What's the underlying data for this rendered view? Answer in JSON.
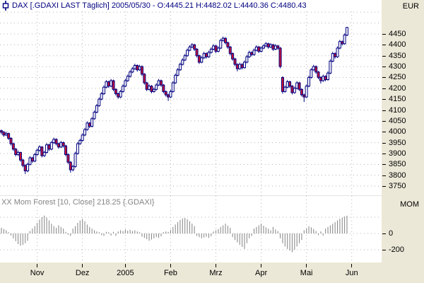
{
  "window": {
    "title": "DAX [.GDAXI LAST Täglich] 2005/05/30 - O:4445.21 H:4482.02 L:4440.36 C:4480.43",
    "currency_label": "EUR",
    "icon": "pin-icon"
  },
  "indicator": {
    "label": "XX Mom Forest [10, Close] 218.25 {.GDAXI}",
    "axis_label": "MOM"
  },
  "chart_data": {
    "type": "candlestick",
    "symbol": ".GDAXI",
    "name": "DAX",
    "interval": "Täglich",
    "last_date": "2005/05/30",
    "last_ohlc": {
      "open": 4445.21,
      "high": 4482.02,
      "low": 4440.36,
      "close": 4480.43
    },
    "price_axis": {
      "ticks": [
        4450,
        4400,
        4350,
        4300,
        4250,
        4200,
        4150,
        4100,
        4050,
        4000,
        3950,
        3900,
        3850,
        3800,
        3750
      ],
      "unlabeled_gridlines": [
        4550,
        4500
      ],
      "ylim": [
        3730,
        4560
      ]
    },
    "month_ticks": [
      {
        "label": "Nov",
        "index": 15
      },
      {
        "label": "Dez",
        "index": 34
      },
      {
        "label": "2005",
        "index": 52
      },
      {
        "label": "Feb",
        "index": 71
      },
      {
        "label": "Mrz",
        "index": 90
      },
      {
        "label": "Apr",
        "index": 109
      },
      {
        "label": "Mai",
        "index": 128
      },
      {
        "label": "Jun",
        "index": 147
      }
    ],
    "candles": [
      [
        4005,
        4010,
        3988,
        3998
      ],
      [
        3998,
        4004,
        3977,
        3985
      ],
      [
        3985,
        4000,
        3980,
        3992
      ],
      [
        3992,
        3996,
        3962,
        3970
      ],
      [
        3970,
        3975,
        3937,
        3945
      ],
      [
        3945,
        3950,
        3912,
        3920
      ],
      [
        3920,
        3926,
        3887,
        3895
      ],
      [
        3895,
        3914,
        3888,
        3905
      ],
      [
        3905,
        3908,
        3862,
        3870
      ],
      [
        3870,
        3876,
        3837,
        3845
      ],
      [
        3845,
        3850,
        3806,
        3820
      ],
      [
        3820,
        3858,
        3814,
        3850
      ],
      [
        3850,
        3888,
        3845,
        3880
      ],
      [
        3880,
        3885,
        3857,
        3865
      ],
      [
        3865,
        3903,
        3860,
        3895
      ],
      [
        3895,
        3923,
        3890,
        3915
      ],
      [
        3915,
        3938,
        3908,
        3930
      ],
      [
        3930,
        3934,
        3882,
        3890
      ],
      [
        3890,
        3913,
        3884,
        3905
      ],
      [
        3905,
        3948,
        3900,
        3940
      ],
      [
        3940,
        3945,
        3912,
        3920
      ],
      [
        3920,
        3958,
        3915,
        3950
      ],
      [
        3950,
        3973,
        3944,
        3965
      ],
      [
        3965,
        3970,
        3937,
        3945
      ],
      [
        3945,
        3950,
        3922,
        3930
      ],
      [
        3930,
        3958,
        3925,
        3950
      ],
      [
        3950,
        3955,
        3927,
        3935
      ],
      [
        3935,
        3940,
        3887,
        3895
      ],
      [
        3895,
        3900,
        3852,
        3860
      ],
      [
        3860,
        3865,
        3812,
        3825
      ],
      [
        3825,
        3848,
        3818,
        3840
      ],
      [
        3840,
        3908,
        3835,
        3900
      ],
      [
        3900,
        3953,
        3895,
        3945
      ],
      [
        3945,
        3968,
        3940,
        3960
      ],
      [
        3960,
        3993,
        3955,
        3985
      ],
      [
        3985,
        4018,
        3980,
        4010
      ],
      [
        4010,
        4048,
        4005,
        4040
      ],
      [
        4040,
        4045,
        4017,
        4025
      ],
      [
        4025,
        4068,
        4020,
        4060
      ],
      [
        4060,
        4098,
        4055,
        4090
      ],
      [
        4090,
        4128,
        4085,
        4120
      ],
      [
        4120,
        4158,
        4115,
        4150
      ],
      [
        4150,
        4183,
        4145,
        4175
      ],
      [
        4175,
        4213,
        4170,
        4205
      ],
      [
        4205,
        4238,
        4200,
        4230
      ],
      [
        4230,
        4235,
        4202,
        4210
      ],
      [
        4210,
        4243,
        4205,
        4235
      ],
      [
        4235,
        4240,
        4187,
        4195
      ],
      [
        4195,
        4200,
        4167,
        4175
      ],
      [
        4175,
        4180,
        4152,
        4160
      ],
      [
        4160,
        4193,
        4155,
        4185
      ],
      [
        4185,
        4218,
        4180,
        4210
      ],
      [
        4210,
        4243,
        4205,
        4235
      ],
      [
        4235,
        4263,
        4230,
        4255
      ],
      [
        4255,
        4283,
        4250,
        4275
      ],
      [
        4275,
        4298,
        4270,
        4290
      ],
      [
        4290,
        4313,
        4285,
        4305
      ],
      [
        4305,
        4310,
        4277,
        4285
      ],
      [
        4285,
        4308,
        4280,
        4300
      ],
      [
        4300,
        4305,
        4257,
        4265
      ],
      [
        4265,
        4270,
        4217,
        4225
      ],
      [
        4225,
        4230,
        4187,
        4195
      ],
      [
        4195,
        4218,
        4190,
        4210
      ],
      [
        4210,
        4215,
        4177,
        4185
      ],
      [
        4185,
        4203,
        4180,
        4195
      ],
      [
        4195,
        4223,
        4190,
        4215
      ],
      [
        4215,
        4243,
        4210,
        4235
      ],
      [
        4235,
        4240,
        4207,
        4215
      ],
      [
        4215,
        4220,
        4177,
        4185
      ],
      [
        4185,
        4190,
        4162,
        4170
      ],
      [
        4170,
        4175,
        4142,
        4160
      ],
      [
        4160,
        4193,
        4155,
        4185
      ],
      [
        4185,
        4233,
        4180,
        4225
      ],
      [
        4225,
        4268,
        4220,
        4260
      ],
      [
        4260,
        4293,
        4255,
        4285
      ],
      [
        4285,
        4318,
        4280,
        4310
      ],
      [
        4310,
        4338,
        4305,
        4330
      ],
      [
        4330,
        4358,
        4325,
        4350
      ],
      [
        4350,
        4383,
        4345,
        4375
      ],
      [
        4375,
        4398,
        4370,
        4390
      ],
      [
        4390,
        4408,
        4385,
        4400
      ],
      [
        4400,
        4405,
        4372,
        4380
      ],
      [
        4380,
        4385,
        4342,
        4350
      ],
      [
        4350,
        4355,
        4312,
        4320
      ],
      [
        4320,
        4348,
        4315,
        4340
      ],
      [
        4340,
        4368,
        4335,
        4360
      ],
      [
        4360,
        4365,
        4337,
        4345
      ],
      [
        4345,
        4373,
        4340,
        4365
      ],
      [
        4365,
        4388,
        4360,
        4380
      ],
      [
        4380,
        4403,
        4375,
        4395
      ],
      [
        4395,
        4400,
        4362,
        4370
      ],
      [
        4370,
        4393,
        4365,
        4385
      ],
      [
        4385,
        4428,
        4380,
        4420
      ],
      [
        4420,
        4438,
        4415,
        4430
      ],
      [
        4430,
        4435,
        4402,
        4410
      ],
      [
        4410,
        4415,
        4382,
        4390
      ],
      [
        4390,
        4395,
        4352,
        4360
      ],
      [
        4360,
        4365,
        4327,
        4335
      ],
      [
        4335,
        4340,
        4302,
        4310
      ],
      [
        4310,
        4315,
        4278,
        4290
      ],
      [
        4290,
        4318,
        4285,
        4310
      ],
      [
        4310,
        4315,
        4287,
        4295
      ],
      [
        4295,
        4328,
        4290,
        4320
      ],
      [
        4320,
        4353,
        4315,
        4345
      ],
      [
        4345,
        4373,
        4340,
        4365
      ],
      [
        4365,
        4370,
        4347,
        4355
      ],
      [
        4355,
        4383,
        4350,
        4375
      ],
      [
        4375,
        4398,
        4370,
        4390
      ],
      [
        4390,
        4395,
        4362,
        4370
      ],
      [
        4370,
        4393,
        4365,
        4385
      ],
      [
        4385,
        4403,
        4380,
        4395
      ],
      [
        4395,
        4413,
        4390,
        4405
      ],
      [
        4405,
        4410,
        4382,
        4390
      ],
      [
        4390,
        4408,
        4385,
        4400
      ],
      [
        4400,
        4405,
        4372,
        4380
      ],
      [
        4380,
        4403,
        4375,
        4395
      ],
      [
        4395,
        4400,
        4377,
        4385
      ],
      [
        4385,
        4390,
        4292,
        4300
      ],
      [
        4250,
        4255,
        4175,
        4185
      ],
      [
        4185,
        4212,
        4180,
        4205
      ],
      [
        4205,
        4238,
        4200,
        4230
      ],
      [
        4230,
        4235,
        4202,
        4210
      ],
      [
        4210,
        4215,
        4172,
        4180
      ],
      [
        4180,
        4208,
        4175,
        4200
      ],
      [
        4200,
        4233,
        4195,
        4225
      ],
      [
        4225,
        4230,
        4187,
        4195
      ],
      [
        4195,
        4200,
        4162,
        4170
      ],
      [
        4170,
        4175,
        4137,
        4160
      ],
      [
        4160,
        4218,
        4155,
        4210
      ],
      [
        4210,
        4258,
        4205,
        4250
      ],
      [
        4250,
        4293,
        4245,
        4285
      ],
      [
        4285,
        4308,
        4280,
        4300
      ],
      [
        4300,
        4305,
        4267,
        4275
      ],
      [
        4275,
        4280,
        4242,
        4250
      ],
      [
        4250,
        4255,
        4222,
        4235
      ],
      [
        4235,
        4263,
        4230,
        4255
      ],
      [
        4255,
        4260,
        4232,
        4240
      ],
      [
        4240,
        4278,
        4235,
        4270
      ],
      [
        4270,
        4333,
        4265,
        4325
      ],
      [
        4325,
        4368,
        4320,
        4360
      ],
      [
        4360,
        4365,
        4337,
        4345
      ],
      [
        4345,
        4393,
        4340,
        4385
      ],
      [
        4385,
        4423,
        4380,
        4415
      ],
      [
        4415,
        4420,
        4397,
        4405
      ],
      [
        4405,
        4453,
        4400,
        4445
      ],
      [
        4445,
        4482,
        4440,
        4480
      ]
    ],
    "momentum": {
      "period": 10,
      "source": "Close",
      "last": 218.25,
      "axis_ticks": [
        0,
        -200
      ],
      "gridlines": [
        200,
        0,
        -200
      ],
      "values": [
        70,
        55,
        40,
        15,
        -25,
        -60,
        -95,
        -130,
        -150,
        -140,
        -120,
        -90,
        30,
        60,
        90,
        130,
        170,
        200,
        220,
        195,
        160,
        120,
        90,
        70,
        100,
        80,
        60,
        20,
        -15,
        -30,
        60,
        90,
        130,
        160,
        180,
        150,
        110,
        80,
        60,
        40,
        25,
        15,
        -20,
        -30,
        20,
        15,
        -25,
        20,
        -30,
        25,
        40,
        30,
        50,
        35,
        45,
        30,
        40,
        25,
        15,
        -40,
        -55,
        -70,
        -90,
        -75,
        -60,
        -45,
        -55,
        -35,
        15,
        25,
        20,
        45,
        80,
        110,
        140,
        165,
        185,
        190,
        175,
        150,
        120,
        90,
        -30,
        -45,
        -60,
        -50,
        -40,
        -55,
        -35,
        25,
        40,
        55,
        80,
        100,
        120,
        95,
        70,
        -45,
        -80,
        -110,
        -140,
        -165,
        -190,
        -120,
        -60,
        -30,
        60,
        80,
        100,
        120,
        95,
        75,
        60,
        40,
        80,
        50,
        30,
        -60,
        -120,
        -160,
        -190,
        -210,
        -230,
        -200,
        -160,
        -120,
        -80,
        40,
        60,
        90,
        75,
        55,
        30,
        -20,
        25,
        -25,
        60,
        80,
        100,
        120,
        140,
        160,
        180,
        195,
        210,
        218
      ]
    },
    "colors": {
      "up_candle_fill": "#ffffff",
      "down_candle_fill": "#c81236",
      "candle_outline": "#000080",
      "momentum_bar": "#828282",
      "grid": "#b5b5b5",
      "panel_bg": "#ebe8d7"
    }
  }
}
